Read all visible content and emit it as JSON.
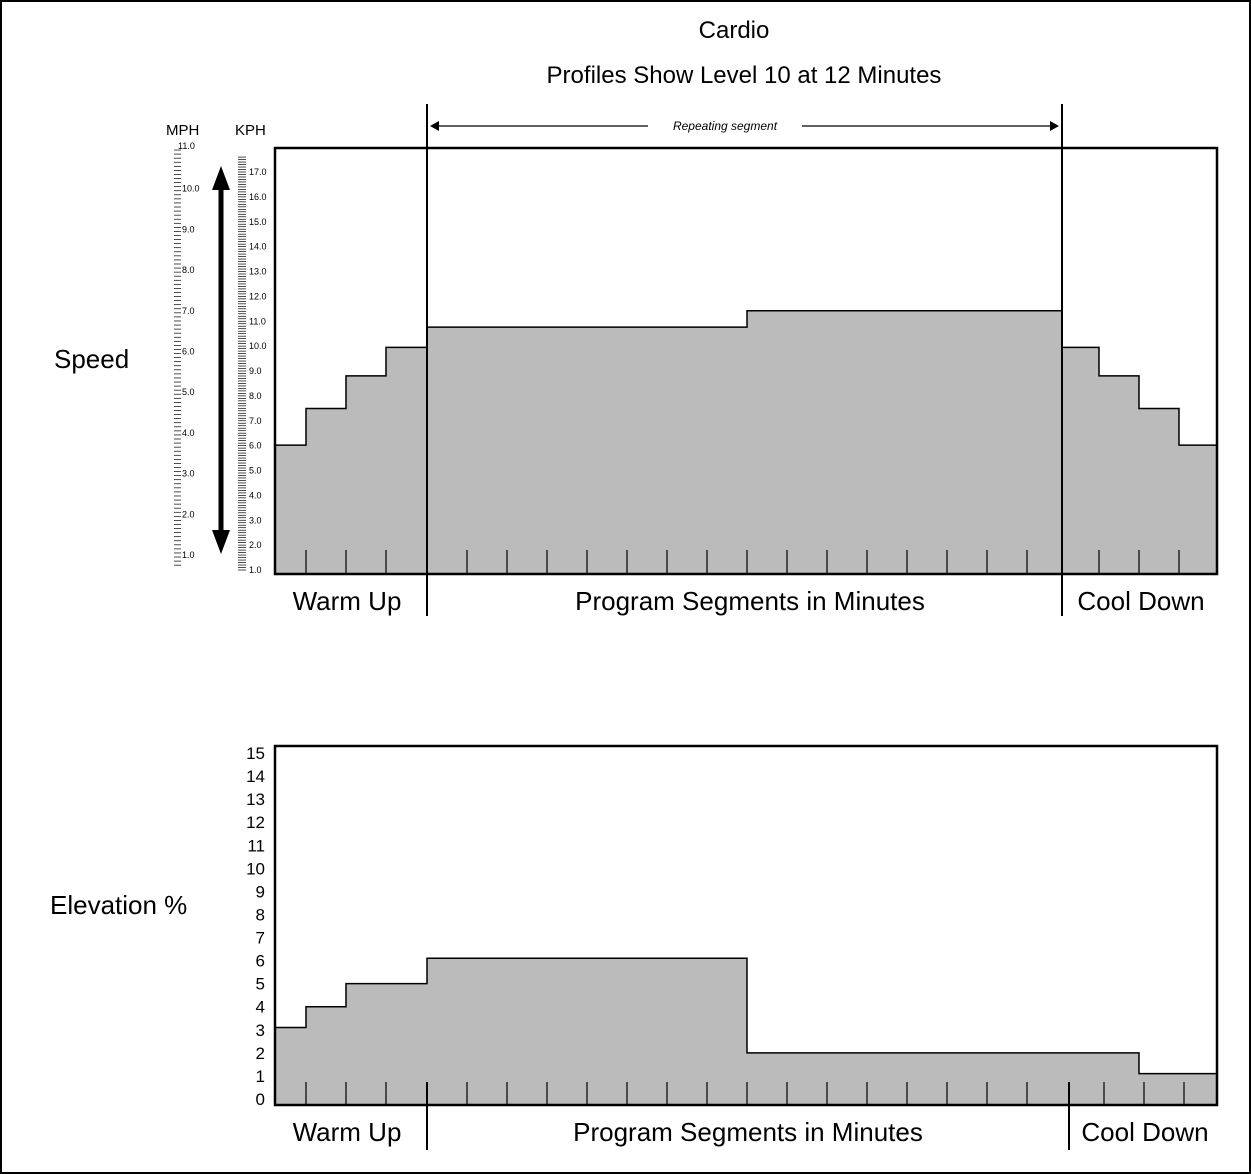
{
  "chart_data": [
    {
      "type": "area",
      "title": "Cardio",
      "subtitle": "Profiles Show Level 10 at 12 Minutes",
      "ylabel": "Speed",
      "unit_left": "MPH",
      "unit_right": "KPH",
      "mph_tick_labels": [
        "1.0",
        "2.0",
        "3.0",
        "4.0",
        "5.0",
        "6.0",
        "7.0",
        "8.0",
        "9.0",
        "10.0",
        "11.0"
      ],
      "kph_tick_labels": [
        "1.0",
        "2.0",
        "3.0",
        "4.0",
        "5.0",
        "6.0",
        "7.0",
        "8.0",
        "9.0",
        "10.0",
        "11.0",
        "12.0",
        "13.0",
        "14.0",
        "15.0",
        "16.0",
        "17.0"
      ],
      "annotation": "Repeating segment",
      "section_labels": {
        "warmup": "Warm Up",
        "program": "Program Segments in Minutes",
        "cooldown": "Cool Down"
      },
      "ylim_mph": [
        0.75,
        11.0
      ],
      "segment_bounds": [
        0,
        4,
        8,
        9,
        10,
        11,
        12,
        13,
        14,
        15,
        16,
        17,
        18,
        19,
        20,
        21,
        22,
        23,
        24,
        25,
        25,
        29
      ],
      "steps": [
        {
          "x0": 0,
          "x1": 1,
          "mph": 3.7
        },
        {
          "x0": 1,
          "x1": 2,
          "mph": 4.6
        },
        {
          "x0": 2,
          "x1": 3,
          "mph": 5.4
        },
        {
          "x0": 3,
          "x1": 4,
          "mph": 6.1
        },
        {
          "x0": 4,
          "x1": 12,
          "mph": 6.6
        },
        {
          "x0": 12,
          "x1": 20,
          "mph": 7.0
        },
        {
          "x0": 20,
          "x1": 21,
          "mph": 6.1
        },
        {
          "x0": 21,
          "x1": 22,
          "mph": 5.4
        },
        {
          "x0": 22,
          "x1": 23,
          "mph": 4.6
        },
        {
          "x0": 23,
          "x1": 24,
          "mph": 3.7
        }
      ]
    },
    {
      "type": "area",
      "ylabel": "Elevation %",
      "tick_labels": [
        "0",
        "1",
        "2",
        "3",
        "4",
        "5",
        "6",
        "7",
        "8",
        "9",
        "10",
        "11",
        "12",
        "13",
        "14",
        "15"
      ],
      "ylim": [
        0,
        15
      ],
      "section_labels": {
        "warmup": "Warm Up",
        "program": "Program Segments in Minutes",
        "cooldown": "Cool Down"
      },
      "steps": [
        {
          "x0": 0,
          "x1": 1,
          "value": 3.1
        },
        {
          "x0": 1,
          "x1": 2,
          "value": 4.0
        },
        {
          "x0": 2,
          "x1": 4,
          "value": 5.0
        },
        {
          "x0": 4,
          "x1": 12,
          "value": 6.1
        },
        {
          "x0": 12,
          "x1": 22,
          "value": 2.0
        },
        {
          "x0": 22,
          "x1": 24,
          "value": 1.1
        }
      ]
    }
  ]
}
